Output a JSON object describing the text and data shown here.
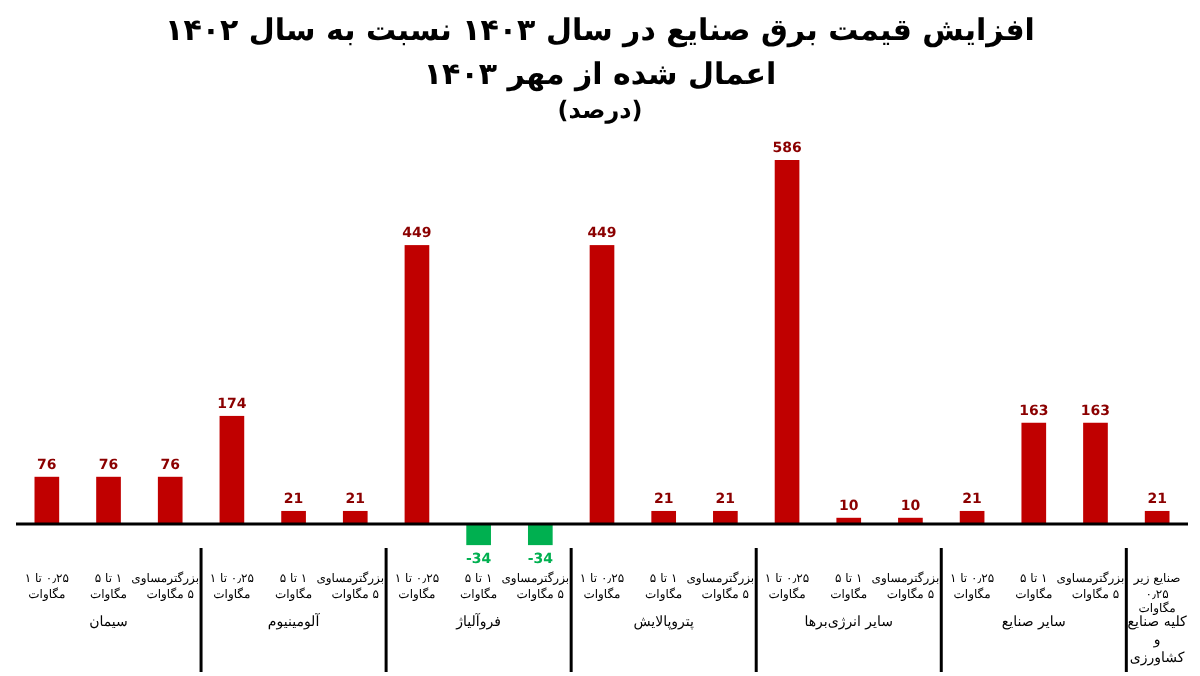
{
  "chart_data": {
    "type": "bar",
    "title": "افزایش قیمت برق صنایع در سال ۱۴۰۳ نسبت به سال ۱۴۰۲ اعمال شده از مهر ۱۴۰۳",
    "subtitle": "(درصد)",
    "categories": [
      "۰٫۲۵ تا ۱ مگاوات",
      "۱ تا ۵ مگاوات",
      "بزرگترمساوی ۵ مگاوات",
      "۰٫۲۵ تا ۱ مگاوات",
      "۱ تا ۵ مگاوات",
      "بزرگترمساوی ۵ مگاوات",
      "۰٫۲۵ تا ۱ مگاوات",
      "۱ تا ۵ مگاوات",
      "بزرگترمساوی ۵ مگاوات",
      "۰٫۲۵ تا ۱ مگاوات",
      "۱ تا ۵ مگاوات",
      "بزرگترمساوی ۵ مگاوات",
      "۰٫۲۵ تا ۱ مگاوات",
      "۱ تا ۵ مگاوات",
      "بزرگترمساوی ۵ مگاوات",
      "۰٫۲۵ تا ۱ مگاوات",
      "۱ تا ۵ مگاوات",
      "بزرگترمساوی ۵ مگاوات",
      "صنایع زیر ۰٫۲۵ مگاوات"
    ],
    "values": [
      76,
      76,
      76,
      174,
      21,
      21,
      449,
      -34,
      -34,
      449,
      21,
      21,
      586,
      10,
      10,
      21,
      163,
      163,
      21
    ],
    "colors": [
      "#c00000",
      "#c00000",
      "#c00000",
      "#c00000",
      "#c00000",
      "#c00000",
      "#c00000",
      "#00b050",
      "#00b050",
      "#c00000",
      "#c00000",
      "#c00000",
      "#c00000",
      "#c00000",
      "#c00000",
      "#c00000",
      "#c00000",
      "#c00000",
      "#c00000"
    ],
    "data_labels": true,
    "annotations": [
      "سیمان",
      "آلومینیوم",
      "فروآلیاژ",
      "پتروپالایش",
      "سایر انرژی‌برها",
      "سایر صنایع",
      "کلیه صنایع و کشاورزی"
    ]
  }
}
